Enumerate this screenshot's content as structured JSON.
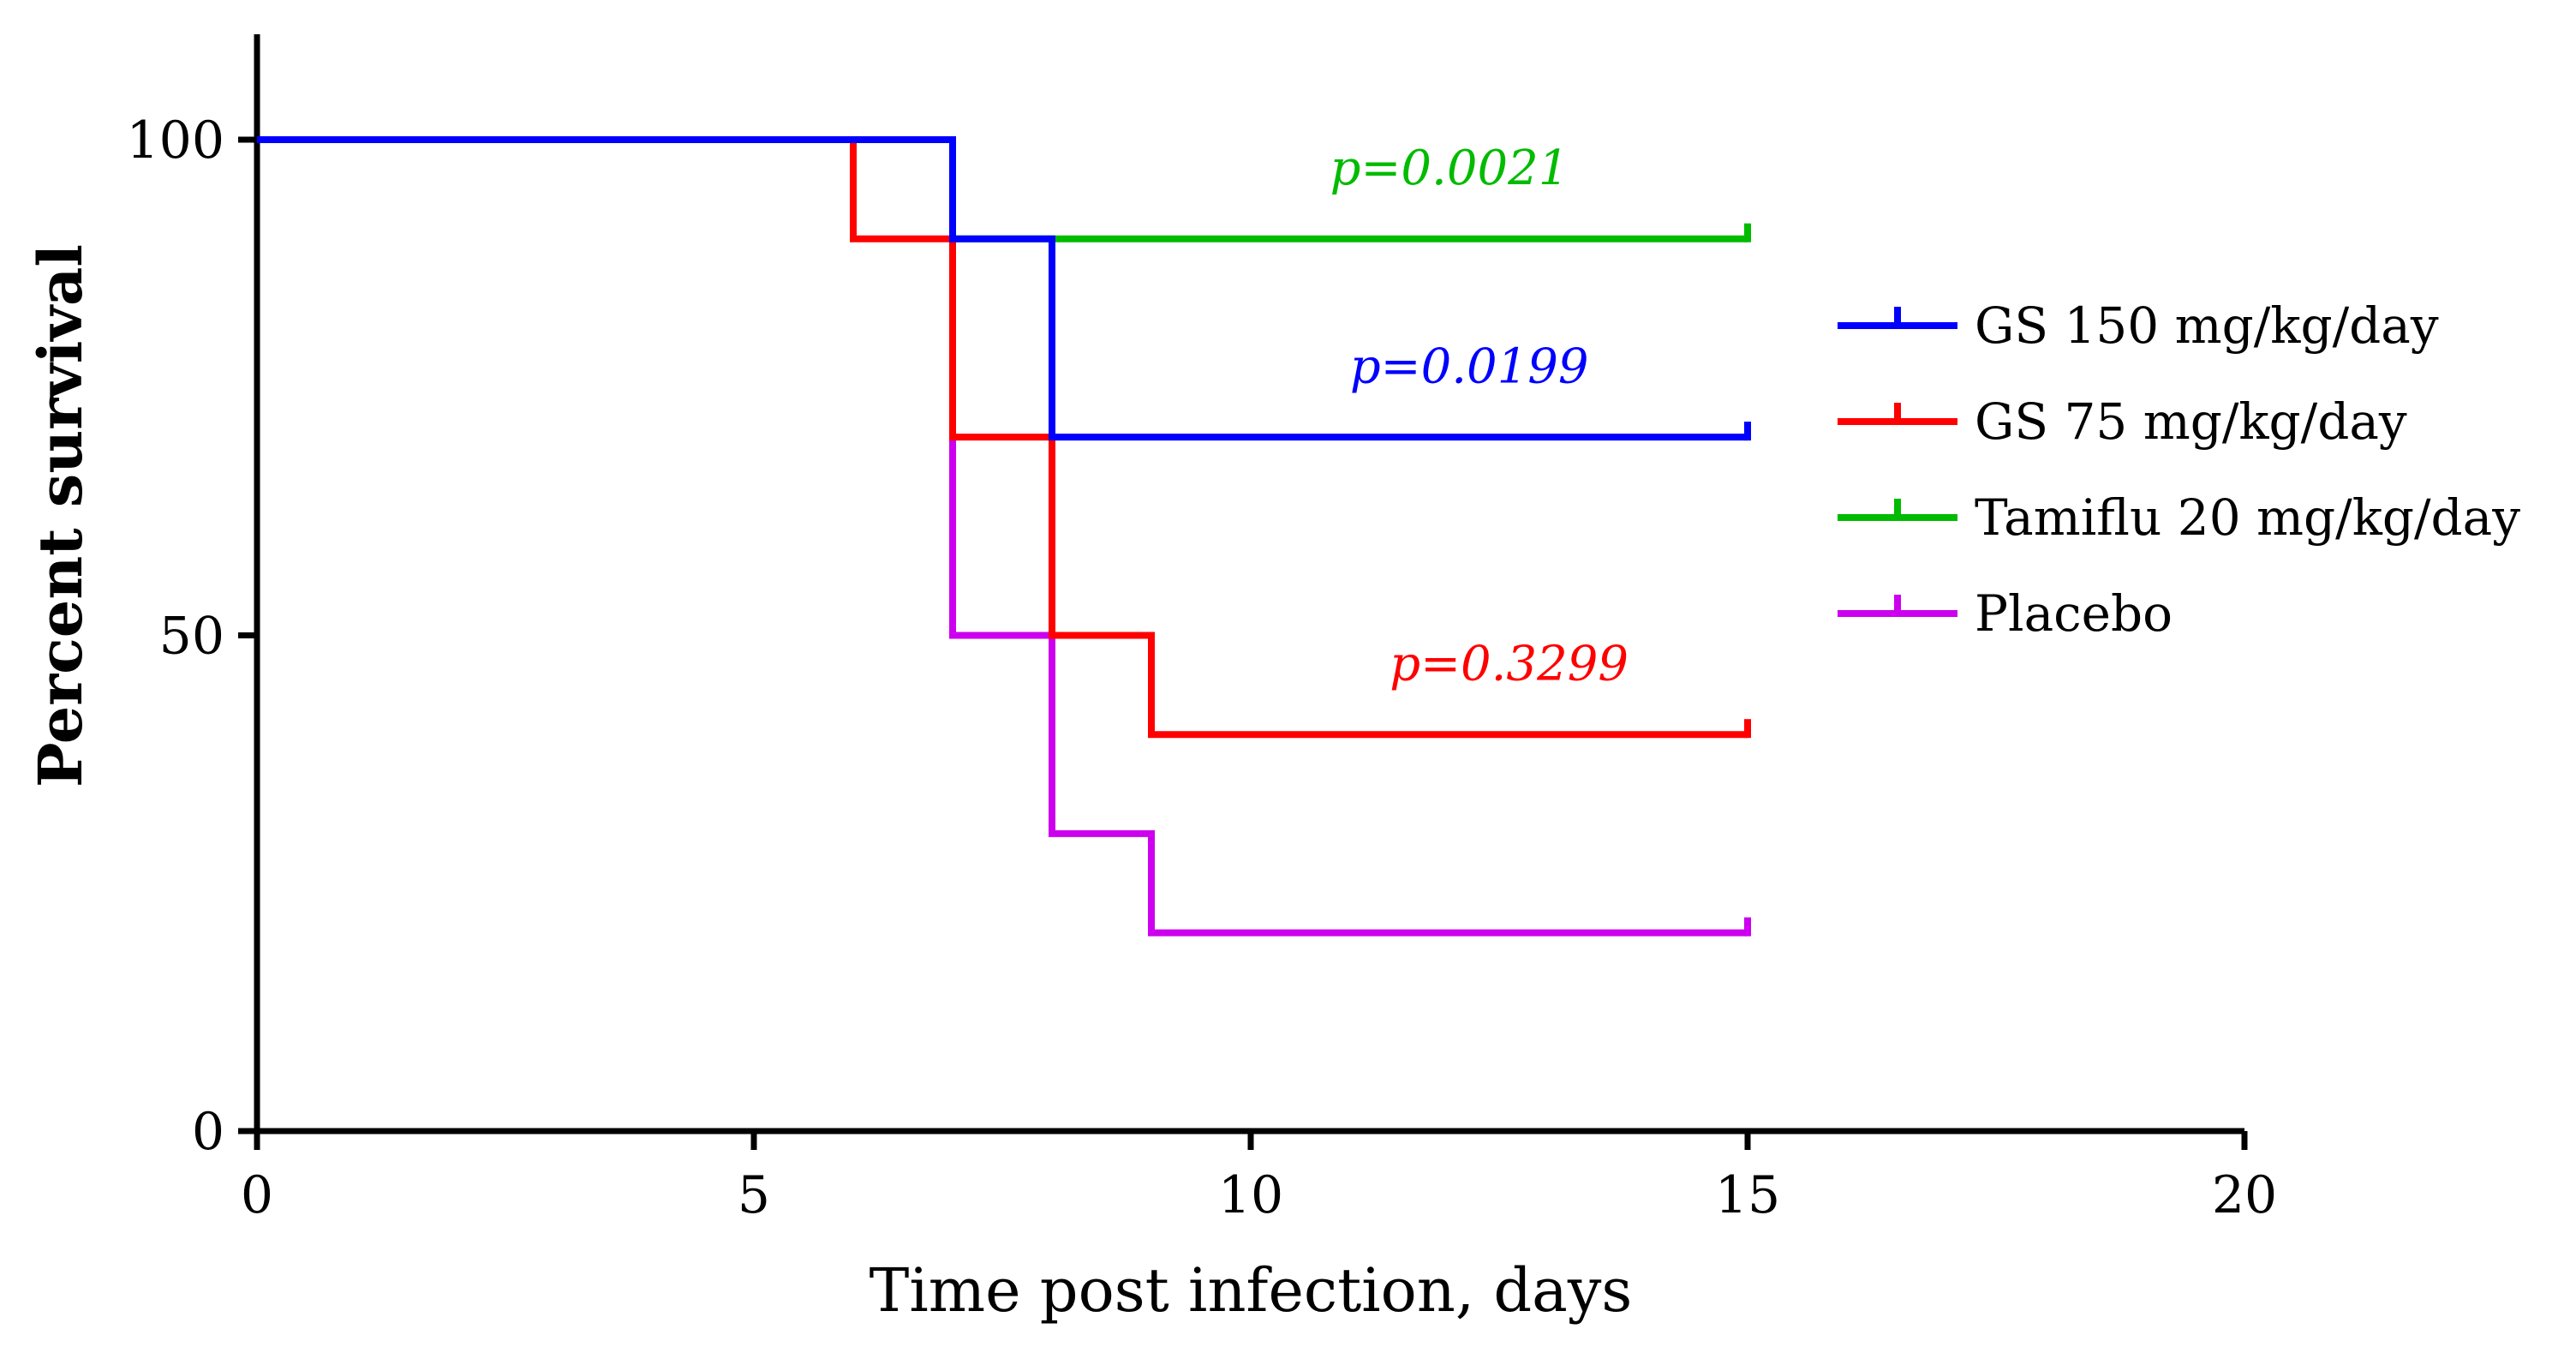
{
  "chart_data": {
    "type": "line",
    "subtype": "kaplan-meier-step",
    "title": "",
    "xlabel": "Time post infection, days",
    "ylabel": "Percent survival",
    "xlim": [
      0,
      20
    ],
    "ylim": [
      0,
      110
    ],
    "x_ticks": [
      0,
      5,
      10,
      15,
      20
    ],
    "x_tick_labels": [
      "0",
      "5",
      "10",
      "15",
      "20"
    ],
    "y_ticks": [
      0,
      50,
      100
    ],
    "y_tick_labels": [
      "0",
      "50",
      "100"
    ],
    "grid": false,
    "legend_position": "right",
    "series": [
      {
        "name": "GS 150 mg/kg/day",
        "color": "#0000ff",
        "points": [
          [
            0,
            100
          ],
          [
            7,
            100
          ],
          [
            7,
            90
          ],
          [
            8,
            90
          ],
          [
            8,
            70
          ],
          [
            15,
            70
          ]
        ],
        "censor_at": 15,
        "p_value": "p=0.0199"
      },
      {
        "name": "GS 75 mg/kg/day",
        "color": "#ff0000",
        "points": [
          [
            0,
            100
          ],
          [
            6,
            100
          ],
          [
            6,
            90
          ],
          [
            7,
            90
          ],
          [
            7,
            70
          ],
          [
            8,
            70
          ],
          [
            8,
            50
          ],
          [
            9,
            50
          ],
          [
            9,
            40
          ],
          [
            15,
            40
          ]
        ],
        "censor_at": 15,
        "p_value": "p=0.3299"
      },
      {
        "name": "Tamiflu 20 mg/kg/day",
        "color": "#00bb00",
        "points": [
          [
            0,
            100
          ],
          [
            7,
            100
          ],
          [
            7,
            90
          ],
          [
            15,
            90
          ]
        ],
        "censor_at": 15,
        "p_value": "p=0.0021"
      },
      {
        "name": "Placebo",
        "color": "#cc00ee",
        "points": [
          [
            0,
            100
          ],
          [
            7,
            100
          ],
          [
            7,
            50
          ],
          [
            8,
            50
          ],
          [
            8,
            30
          ],
          [
            9,
            30
          ],
          [
            9,
            20
          ],
          [
            15,
            20
          ]
        ],
        "censor_at": 15,
        "p_value": ""
      }
    ],
    "annotations": [
      {
        "text": "p=0.0021",
        "series": "Tamiflu 20 mg/kg/day",
        "x": 12,
        "y": 95.5
      },
      {
        "text": "p=0.0199",
        "series": "GS 150 mg/kg/day",
        "x": 12.2,
        "y": 75.5
      },
      {
        "text": "p=0.3299",
        "series": "GS 75 mg/kg/day",
        "x": 12.6,
        "y": 45.5
      }
    ]
  }
}
